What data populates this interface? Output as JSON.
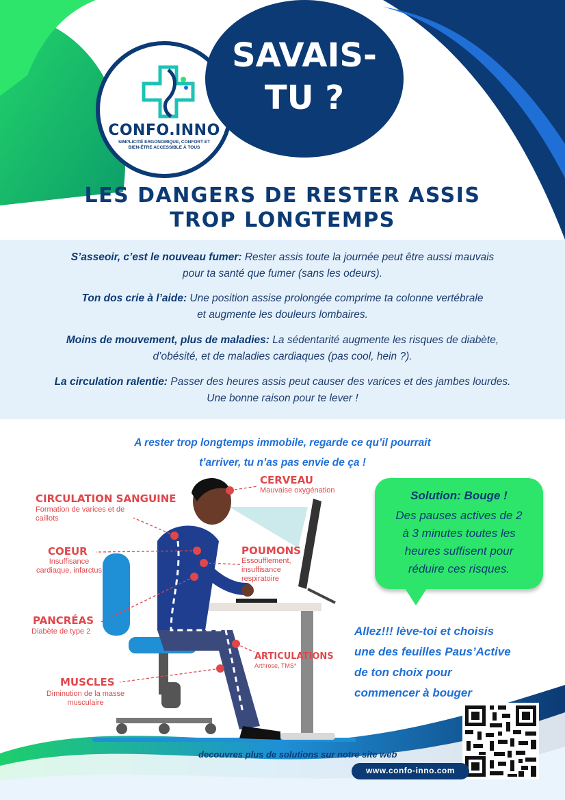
{
  "brand": {
    "name": "CONFO.INNO",
    "tagline": "SIMPLICITÉ ERGONOMIQUE, CONFORT ET BIEN-ÊTRE ACCESSIBLE À TOUS",
    "colors": {
      "navy": "#0c3a74",
      "green": "#2ee56b",
      "blue": "#1f6fd6",
      "red": "#e0474b",
      "light_band": "#e4f1fb"
    }
  },
  "header": {
    "line1": "SAVAIS-",
    "line2": "TU ?"
  },
  "title": {
    "line1": "LES DANGERS DE RESTER ASSIS",
    "line2": "TROP LONGTEMPS"
  },
  "facts": [
    {
      "bold": "S’asseoir, c’est le nouveau fumer:",
      "text1": " Rester assis toute la journée peut être aussi mauvais",
      "text2": "pour ta santé que fumer (sans les odeurs)."
    },
    {
      "bold": "Ton dos crie à l’aide:",
      "text1": " Une position assise prolongée comprime ta colonne vertébrale",
      "text2": "et augmente les douleurs lombaires."
    },
    {
      "bold": "Moins de mouvement, plus de maladies:",
      "text1": " La sédentarité augmente les risques de diabète,",
      "text2": "d’obésité, et de maladies cardiaques (pas cool, hein ?)."
    },
    {
      "bold": "La circulation ralentie:",
      "text1": " Passer des heures assis peut causer des varices et des jambes lourdes.",
      "text2": "Une bonne raison pour te lever !"
    }
  ],
  "intro": {
    "line1": "A rester trop longtemps immobile, regarde ce qu’il pourrait",
    "line2": "t’arriver, tu n’as pas envie de ça !"
  },
  "labels": {
    "cerveau": {
      "title": "CERVEAU",
      "desc": "Mauvaise oxygénation"
    },
    "circulation": {
      "title": "CIRCULATION SANGUINE",
      "desc1": "Formation de varices et de",
      "desc2": "caillots"
    },
    "coeur": {
      "title": "COEUR",
      "desc1": "Insuffisance",
      "desc2": "cardiaque, infarctus"
    },
    "poumons": {
      "title": "POUMONS",
      "desc1": "Essoufflement,",
      "desc2": "insuffisance",
      "desc3": "respiratoire"
    },
    "pancreas": {
      "title": "PANCRÉAS",
      "desc": "Diabète de type 2"
    },
    "articulations": {
      "title": "ARTICULATIONS",
      "desc": "Arthrose, TMS*"
    },
    "muscles": {
      "title": "MUSCLES",
      "desc1": "Diminution de la masse",
      "desc2": "musculaire"
    }
  },
  "solution": {
    "title": "Solution:  Bouge !",
    "lines": [
      "Des pauses actives de 2",
      "à 3 minutes toutes les",
      "heures suffisent pour",
      "réduire ces risques."
    ]
  },
  "cta": {
    "lines": [
      "Allez!!! lève-toi et choisis",
      "une des  feuilles Paus’Active",
      "de ton choix pour",
      "commencer à bouger"
    ]
  },
  "footer": {
    "text": "decouvres plus de solutions sur notre site web",
    "url": "www.confo-inno.com"
  }
}
